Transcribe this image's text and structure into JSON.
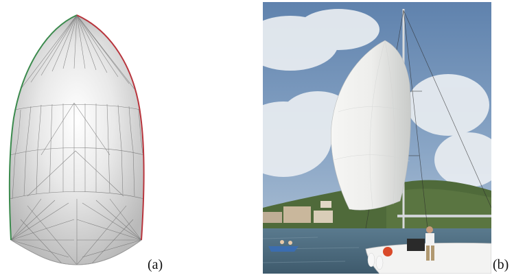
{
  "figure": {
    "panel_a": {
      "label": "(a)",
      "description_icon": "sail-mesh-render",
      "colors": {
        "luff_edge": "#3a8a4c",
        "leech_edge": "#b8343c",
        "mesh_line": "#6d6d6d",
        "fill": "#d8d8d8"
      }
    },
    "panel_b": {
      "label": "(b)",
      "description_icon": "sailboat-photo",
      "colors": {
        "sky": "#6f8fb4",
        "cloud": "#e6ebf0",
        "sea": "#4f6f86",
        "hill": "#4f6a3a",
        "sail": "#f1f1f0"
      }
    }
  }
}
